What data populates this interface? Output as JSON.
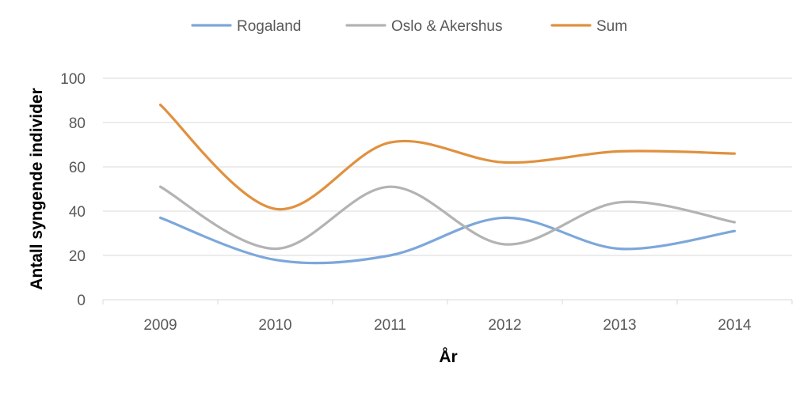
{
  "chart_data": {
    "type": "line",
    "categories": [
      "2009",
      "2010",
      "2011",
      "2012",
      "2013",
      "2014"
    ],
    "series": [
      {
        "name": "Rogaland",
        "values": [
          37,
          18,
          20,
          37,
          23,
          31
        ],
        "color": "#7ca7da"
      },
      {
        "name": "Oslo & Akershus",
        "values": [
          51,
          23,
          51,
          25,
          44,
          35
        ],
        "color": "#b3b3b3"
      },
      {
        "name": "Sum",
        "values": [
          88,
          41,
          71,
          62,
          67,
          66
        ],
        "color": "#e0913f"
      }
    ],
    "xlabel": "År",
    "ylabel": "Antall syngende individer",
    "ylim": [
      0,
      100
    ],
    "yticks": [
      "0",
      "20",
      "40",
      "60",
      "80",
      "100"
    ],
    "grid": true,
    "legend_position": "top",
    "smoothed": true
  }
}
